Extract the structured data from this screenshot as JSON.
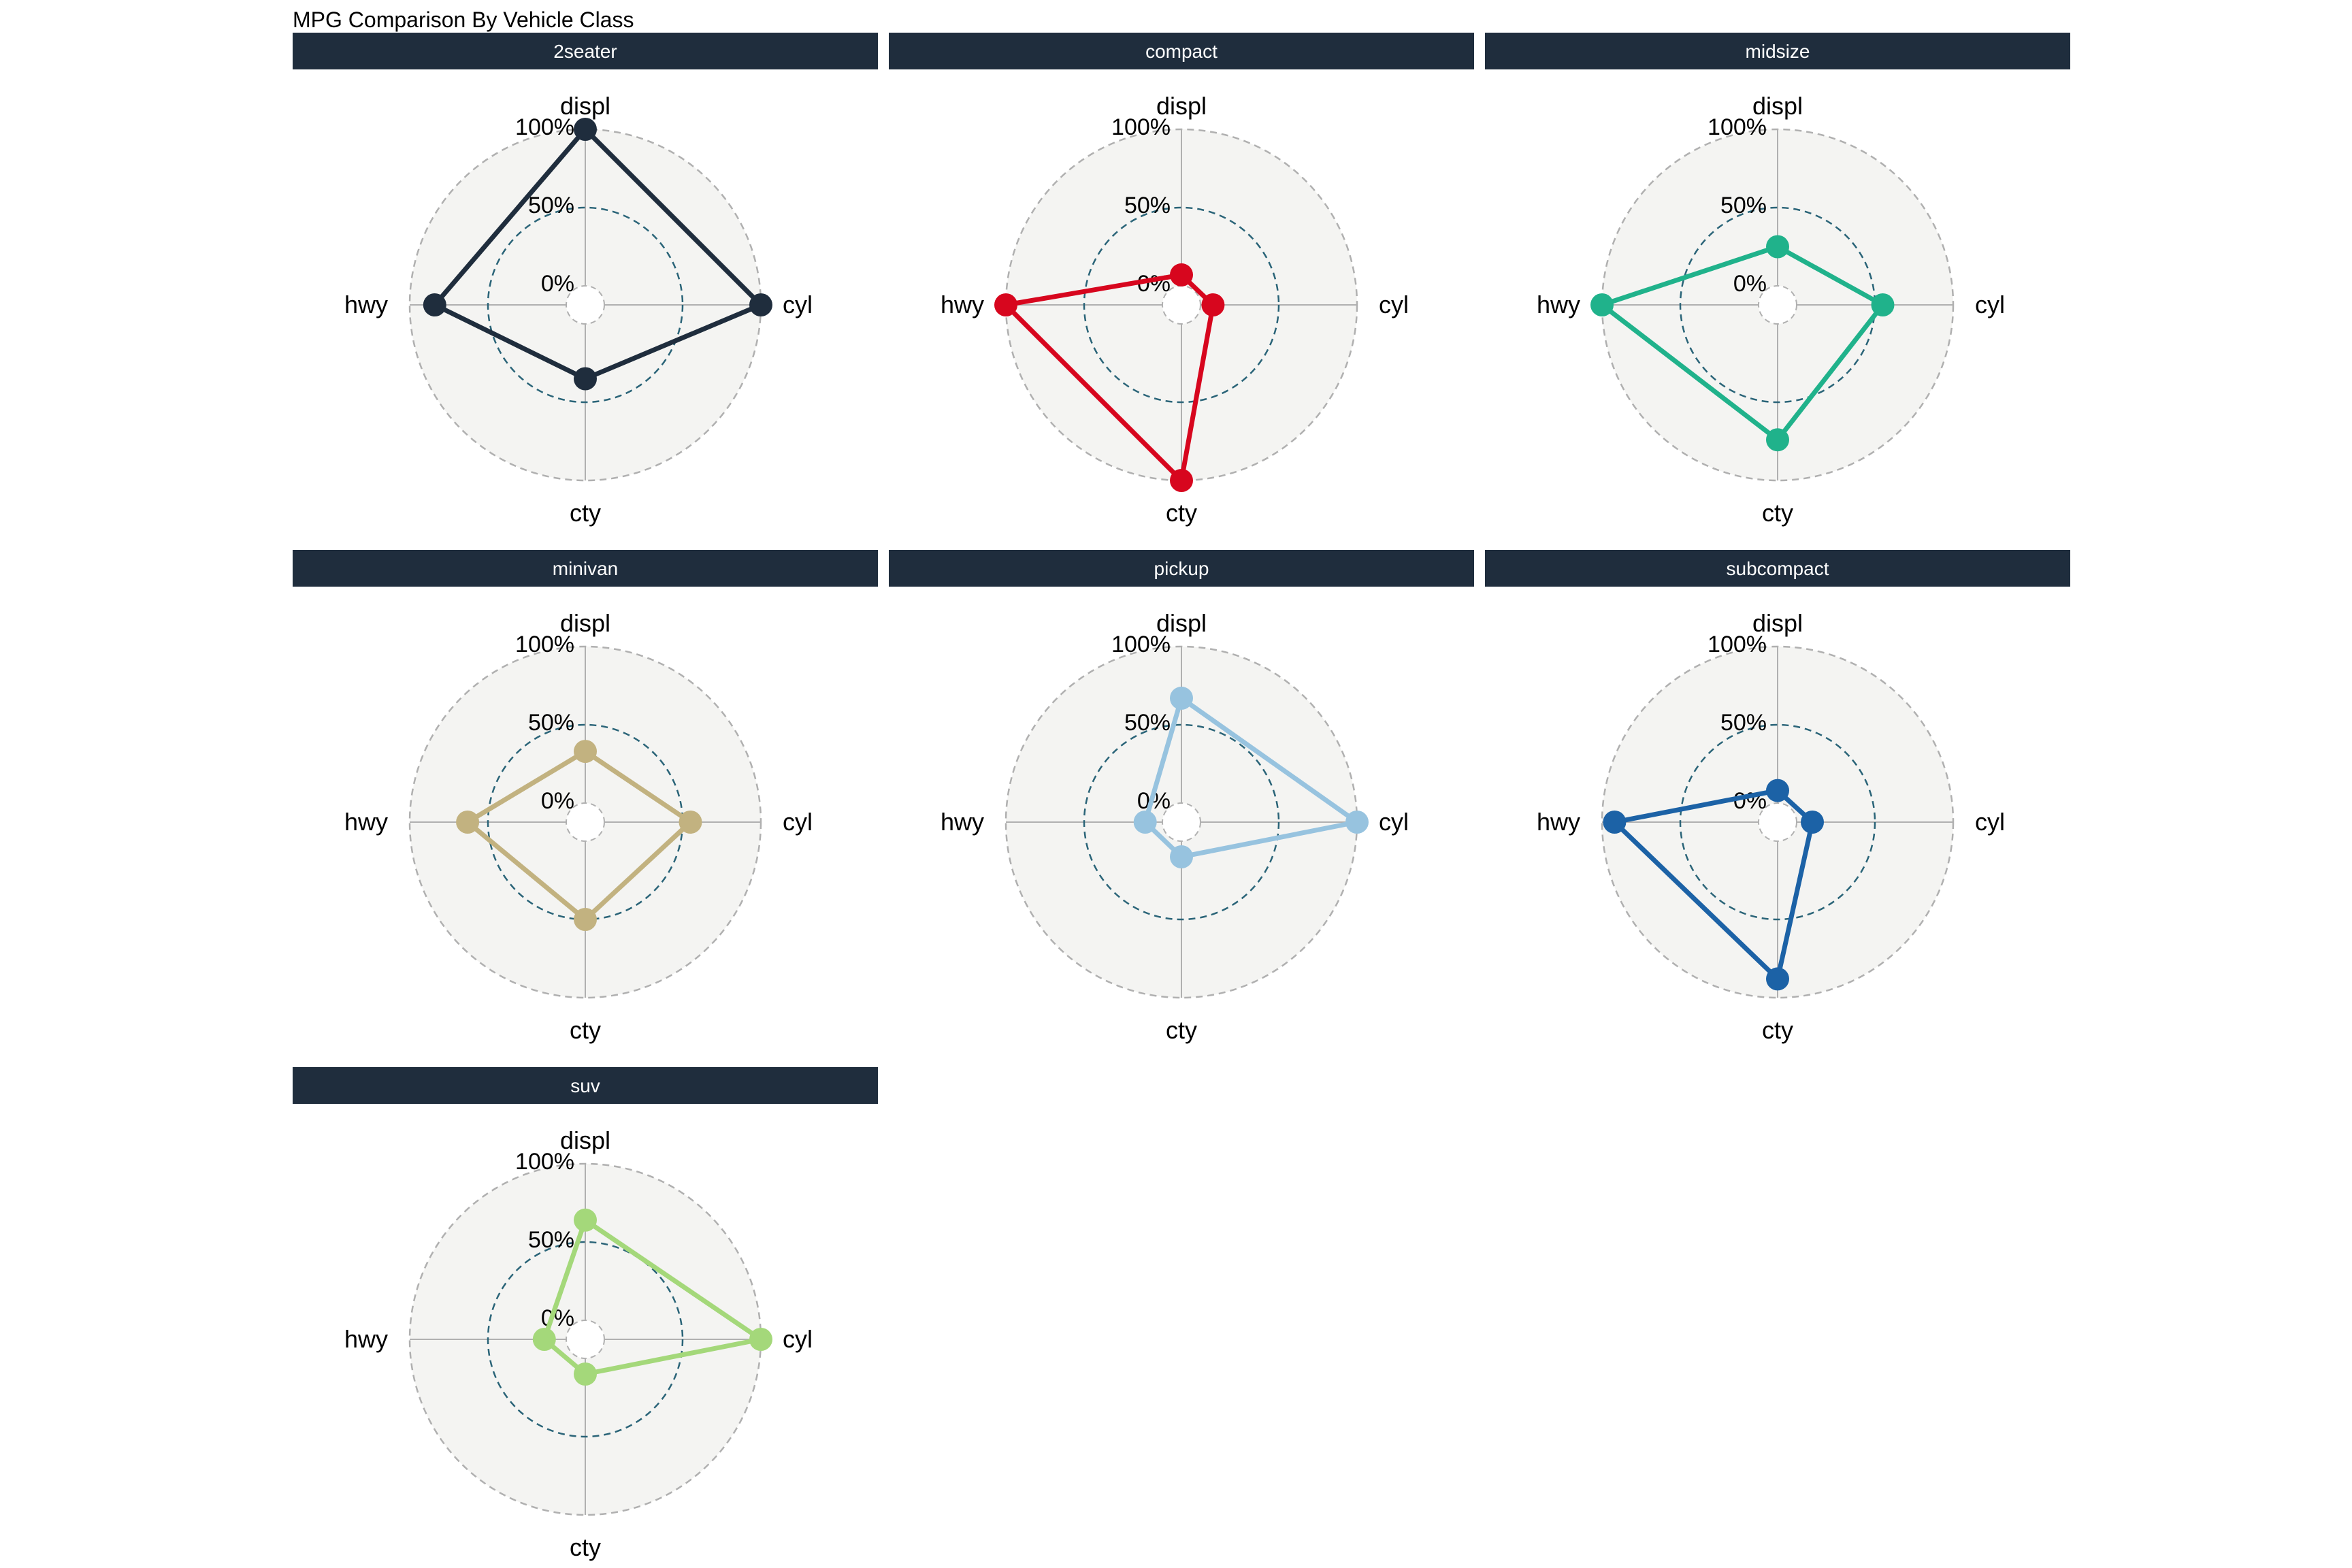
{
  "chart_data": {
    "type": "radar",
    "title": "MPG Comparison By Vehicle Class",
    "axes": [
      "displ",
      "cyl",
      "cty",
      "hwy"
    ],
    "rlabels": [
      "0%",
      "50%",
      "100%"
    ],
    "rlim": [
      0,
      100
    ],
    "colors": {
      "strip_bg": "#1f2d3d",
      "strip_text": "#ffffff",
      "panel_bg": "#f4f4f2",
      "outer_ring": "#b0b0b0",
      "mid_ring": "#2a6478",
      "spokes": "#b0b0b0"
    },
    "facets": [
      {
        "name": "2seater",
        "color": "#1f2d3d",
        "values": {
          "displ": 100,
          "cyl": 100,
          "cty": 35,
          "hwy": 84
        }
      },
      {
        "name": "compact",
        "color": "#d7061e",
        "values": {
          "displ": 7,
          "cyl": 8,
          "cty": 100,
          "hwy": 100
        }
      },
      {
        "name": "midsize",
        "color": "#20b28b",
        "values": {
          "displ": 25,
          "cyl": 55,
          "cty": 74,
          "hwy": 100
        }
      },
      {
        "name": "minivan",
        "color": "#c2b280",
        "values": {
          "displ": 33,
          "cyl": 55,
          "cty": 50,
          "hwy": 63
        }
      },
      {
        "name": "pickup",
        "color": "#97c3df",
        "values": {
          "displ": 67,
          "cyl": 100,
          "cty": 10,
          "hwy": 11
        }
      },
      {
        "name": "subcompact",
        "color": "#1c62a6",
        "values": {
          "displ": 8,
          "cyl": 10,
          "cty": 88,
          "hwy": 92
        }
      },
      {
        "name": "suv",
        "color": "#a4d87a",
        "values": {
          "displ": 64,
          "cyl": 100,
          "cty": 10,
          "hwy": 14
        }
      }
    ]
  }
}
